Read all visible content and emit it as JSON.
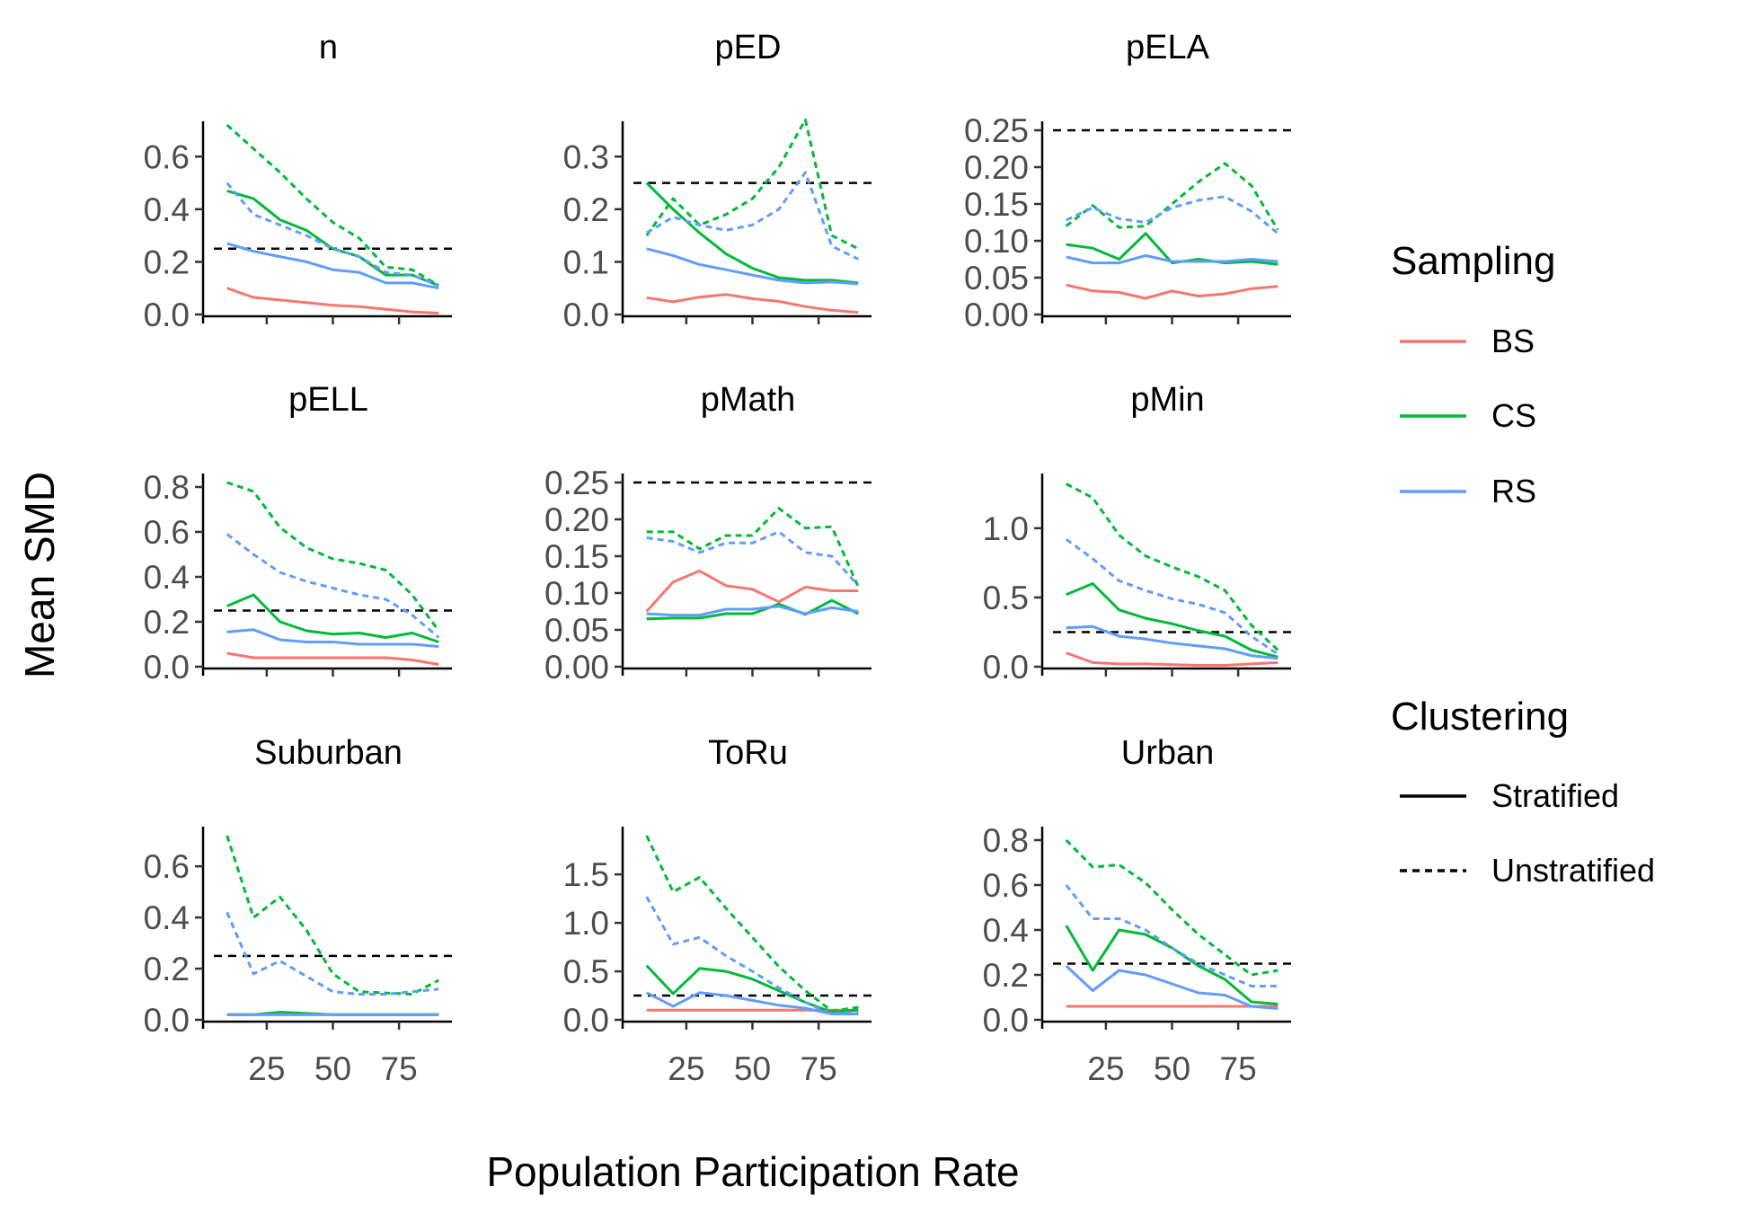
{
  "figure": {
    "xlabel": "Population Participation Rate",
    "ylabel": "Mean SMD"
  },
  "legend": {
    "sampling_title": "Sampling",
    "sampling_items": [
      {
        "label": "BS",
        "color": "#F8766D"
      },
      {
        "label": "CS",
        "color": "#00BA38"
      },
      {
        "label": "RS",
        "color": "#619CFF"
      }
    ],
    "clustering_title": "Clustering",
    "clustering_items": [
      {
        "label": "Stratified",
        "linetype": "solid"
      },
      {
        "label": "Unstratified",
        "linetype": "dashed"
      }
    ]
  },
  "chart_data": {
    "type": "line",
    "xlabel": "Population Participation Rate",
    "ylabel": "Mean SMD",
    "x": [
      10,
      20,
      30,
      40,
      50,
      60,
      70,
      80,
      90
    ],
    "x_ticks": [
      "25",
      "50",
      "75"
    ],
    "x_tick_values": [
      25,
      50,
      75
    ],
    "xlim": [
      5,
      95
    ],
    "threshold": 0.25,
    "colors": {
      "BS": "#F8766D",
      "CS": "#00BA38",
      "RS": "#619CFF"
    },
    "panels": [
      {
        "title": "n",
        "ylim": [
          0,
          0.7
        ],
        "y_ticks": [
          "0.0",
          "0.2",
          "0.4",
          "0.6"
        ],
        "y_tick_values": [
          0,
          0.2,
          0.4,
          0.6
        ],
        "series": [
          {
            "sampling": "BS",
            "clustering": "Stratified",
            "values": [
              0.1,
              0.065,
              0.055,
              0.045,
              0.035,
              0.03,
              0.02,
              0.01,
              0.005
            ]
          },
          {
            "sampling": "CS",
            "clustering": "Stratified",
            "values": [
              0.47,
              0.44,
              0.36,
              0.32,
              0.25,
              0.22,
              0.15,
              0.15,
              0.11
            ]
          },
          {
            "sampling": "RS",
            "clustering": "Stratified",
            "values": [
              0.27,
              0.24,
              0.22,
              0.2,
              0.17,
              0.16,
              0.12,
              0.12,
              0.1
            ]
          },
          {
            "sampling": "CS",
            "clustering": "Unstratified",
            "values": [
              0.72,
              0.63,
              0.54,
              0.44,
              0.35,
              0.29,
              0.18,
              0.17,
              0.11
            ]
          },
          {
            "sampling": "RS",
            "clustering": "Unstratified",
            "values": [
              0.5,
              0.38,
              0.34,
              0.3,
              0.25,
              0.22,
              0.16,
              0.15,
              0.11
            ]
          }
        ]
      },
      {
        "title": "pED",
        "ylim": [
          0,
          0.35
        ],
        "y_ticks": [
          "0.0",
          "0.1",
          "0.2",
          "0.3"
        ],
        "y_tick_values": [
          0,
          0.1,
          0.2,
          0.3
        ],
        "series": [
          {
            "sampling": "BS",
            "clustering": "Stratified",
            "values": [
              0.032,
              0.024,
              0.033,
              0.038,
              0.03,
              0.025,
              0.015,
              0.008,
              0.004
            ]
          },
          {
            "sampling": "CS",
            "clustering": "Stratified",
            "values": [
              0.25,
              0.2,
              0.155,
              0.115,
              0.088,
              0.07,
              0.065,
              0.065,
              0.06
            ]
          },
          {
            "sampling": "RS",
            "clustering": "Stratified",
            "values": [
              0.125,
              0.112,
              0.095,
              0.085,
              0.075,
              0.065,
              0.06,
              0.062,
              0.058
            ]
          },
          {
            "sampling": "CS",
            "clustering": "Unstratified",
            "values": [
              0.15,
              0.22,
              0.17,
              0.19,
              0.22,
              0.28,
              0.37,
              0.15,
              0.125
            ]
          },
          {
            "sampling": "RS",
            "clustering": "Unstratified",
            "values": [
              0.155,
              0.185,
              0.17,
              0.16,
              0.17,
              0.2,
              0.27,
              0.13,
              0.105
            ]
          }
        ]
      },
      {
        "title": "pELA",
        "ylim": [
          0,
          0.25
        ],
        "y_ticks": [
          "0.00",
          "0.05",
          "0.10",
          "0.15",
          "0.20",
          "0.25"
        ],
        "y_tick_values": [
          0,
          0.05,
          0.1,
          0.15,
          0.2,
          0.25
        ],
        "series": [
          {
            "sampling": "BS",
            "clustering": "Stratified",
            "values": [
              0.04,
              0.032,
              0.03,
              0.022,
              0.032,
              0.025,
              0.028,
              0.035,
              0.038
            ]
          },
          {
            "sampling": "CS",
            "clustering": "Stratified",
            "values": [
              0.095,
              0.09,
              0.075,
              0.11,
              0.07,
              0.075,
              0.07,
              0.072,
              0.068
            ]
          },
          {
            "sampling": "RS",
            "clustering": "Stratified",
            "values": [
              0.078,
              0.07,
              0.07,
              0.08,
              0.072,
              0.072,
              0.072,
              0.075,
              0.072
            ]
          },
          {
            "sampling": "CS",
            "clustering": "Unstratified",
            "values": [
              0.12,
              0.148,
              0.118,
              0.12,
              0.15,
              0.18,
              0.205,
              0.175,
              0.115
            ]
          },
          {
            "sampling": "RS",
            "clustering": "Unstratified",
            "values": [
              0.128,
              0.145,
              0.13,
              0.125,
              0.145,
              0.155,
              0.16,
              0.14,
              0.11
            ]
          }
        ]
      },
      {
        "title": "pELL",
        "ylim": [
          0,
          0.82
        ],
        "y_ticks": [
          "0.0",
          "0.2",
          "0.4",
          "0.6",
          "0.8"
        ],
        "y_tick_values": [
          0,
          0.2,
          0.4,
          0.6,
          0.8
        ],
        "series": [
          {
            "sampling": "BS",
            "clustering": "Stratified",
            "values": [
              0.06,
              0.04,
              0.04,
              0.04,
              0.04,
              0.04,
              0.04,
              0.03,
              0.01
            ]
          },
          {
            "sampling": "CS",
            "clustering": "Stratified",
            "values": [
              0.27,
              0.32,
              0.2,
              0.16,
              0.145,
              0.15,
              0.13,
              0.15,
              0.11
            ]
          },
          {
            "sampling": "RS",
            "clustering": "Stratified",
            "values": [
              0.155,
              0.165,
              0.12,
              0.11,
              0.11,
              0.1,
              0.1,
              0.1,
              0.09
            ]
          },
          {
            "sampling": "CS",
            "clustering": "Unstratified",
            "values": [
              0.82,
              0.78,
              0.62,
              0.53,
              0.48,
              0.46,
              0.43,
              0.32,
              0.16
            ]
          },
          {
            "sampling": "RS",
            "clustering": "Unstratified",
            "values": [
              0.59,
              0.5,
              0.42,
              0.38,
              0.35,
              0.32,
              0.3,
              0.23,
              0.13
            ]
          }
        ]
      },
      {
        "title": "pMath",
        "ylim": [
          0,
          0.25
        ],
        "y_ticks": [
          "0.00",
          "0.05",
          "0.10",
          "0.15",
          "0.20",
          "0.25"
        ],
        "y_tick_values": [
          0,
          0.05,
          0.1,
          0.15,
          0.2,
          0.25
        ],
        "series": [
          {
            "sampling": "BS",
            "clustering": "Stratified",
            "values": [
              0.075,
              0.115,
              0.13,
              0.11,
              0.105,
              0.088,
              0.108,
              0.103,
              0.103
            ]
          },
          {
            "sampling": "CS",
            "clustering": "Stratified",
            "values": [
              0.065,
              0.066,
              0.066,
              0.072,
              0.072,
              0.085,
              0.071,
              0.09,
              0.072
            ]
          },
          {
            "sampling": "RS",
            "clustering": "Stratified",
            "values": [
              0.072,
              0.07,
              0.07,
              0.078,
              0.078,
              0.082,
              0.072,
              0.08,
              0.075
            ]
          },
          {
            "sampling": "CS",
            "clustering": "Unstratified",
            "values": [
              0.183,
              0.183,
              0.16,
              0.178,
              0.178,
              0.215,
              0.188,
              0.19,
              0.108
            ]
          },
          {
            "sampling": "RS",
            "clustering": "Unstratified",
            "values": [
              0.175,
              0.17,
              0.155,
              0.168,
              0.168,
              0.183,
              0.155,
              0.15,
              0.11
            ]
          }
        ]
      },
      {
        "title": "pMin",
        "ylim": [
          0,
          1.33
        ],
        "y_ticks": [
          "0.0",
          "0.5",
          "1.0"
        ],
        "y_tick_values": [
          0,
          0.5,
          1.0
        ],
        "series": [
          {
            "sampling": "BS",
            "clustering": "Stratified",
            "values": [
              0.1,
              0.03,
              0.02,
              0.02,
              0.015,
              0.01,
              0.01,
              0.02,
              0.03
            ]
          },
          {
            "sampling": "CS",
            "clustering": "Stratified",
            "values": [
              0.52,
              0.6,
              0.41,
              0.35,
              0.31,
              0.26,
              0.22,
              0.12,
              0.07
            ]
          },
          {
            "sampling": "RS",
            "clustering": "Stratified",
            "values": [
              0.28,
              0.29,
              0.22,
              0.2,
              0.17,
              0.15,
              0.13,
              0.08,
              0.06
            ]
          },
          {
            "sampling": "CS",
            "clustering": "Unstratified",
            "values": [
              1.32,
              1.22,
              0.95,
              0.8,
              0.72,
              0.65,
              0.55,
              0.3,
              0.12
            ]
          },
          {
            "sampling": "RS",
            "clustering": "Unstratified",
            "values": [
              0.92,
              0.78,
              0.62,
              0.55,
              0.49,
              0.45,
              0.39,
              0.22,
              0.09
            ]
          }
        ]
      },
      {
        "title": "Suburban",
        "ylim": [
          0,
          0.72
        ],
        "y_ticks": [
          "0.0",
          "0.2",
          "0.4",
          "0.6"
        ],
        "y_tick_values": [
          0,
          0.2,
          0.4,
          0.6
        ],
        "series": [
          {
            "sampling": "BS",
            "clustering": "Stratified",
            "values": [
              0.02,
              0.02,
              0.02,
              0.02,
              0.02,
              0.02,
              0.02,
              0.02,
              0.02
            ]
          },
          {
            "sampling": "CS",
            "clustering": "Stratified",
            "values": [
              0.02,
              0.02,
              0.03,
              0.025,
              0.02,
              0.02,
              0.02,
              0.02,
              0.02
            ]
          },
          {
            "sampling": "RS",
            "clustering": "Stratified",
            "values": [
              0.02,
              0.02,
              0.02,
              0.02,
              0.02,
              0.02,
              0.02,
              0.02,
              0.02
            ]
          },
          {
            "sampling": "CS",
            "clustering": "Unstratified",
            "values": [
              0.72,
              0.4,
              0.48,
              0.35,
              0.18,
              0.11,
              0.105,
              0.1,
              0.155
            ]
          },
          {
            "sampling": "RS",
            "clustering": "Unstratified",
            "values": [
              0.42,
              0.18,
              0.23,
              0.17,
              0.11,
              0.1,
              0.1,
              0.11,
              0.12
            ]
          }
        ]
      },
      {
        "title": "ToRu",
        "ylim": [
          0,
          1.9
        ],
        "y_ticks": [
          "0.0",
          "0.5",
          "1.0",
          "1.5"
        ],
        "y_tick_values": [
          0,
          0.5,
          1.0,
          1.5
        ],
        "series": [
          {
            "sampling": "BS",
            "clustering": "Stratified",
            "values": [
              0.1,
              0.1,
              0.1,
              0.1,
              0.1,
              0.1,
              0.1,
              0.1,
              0.1
            ]
          },
          {
            "sampling": "CS",
            "clustering": "Stratified",
            "values": [
              0.56,
              0.27,
              0.53,
              0.5,
              0.42,
              0.3,
              0.18,
              0.08,
              0.1
            ]
          },
          {
            "sampling": "RS",
            "clustering": "Stratified",
            "values": [
              0.28,
              0.14,
              0.28,
              0.25,
              0.2,
              0.15,
              0.12,
              0.06,
              0.06
            ]
          },
          {
            "sampling": "CS",
            "clustering": "Unstratified",
            "values": [
              1.9,
              1.32,
              1.47,
              1.15,
              0.85,
              0.55,
              0.3,
              0.09,
              0.13
            ]
          },
          {
            "sampling": "RS",
            "clustering": "Unstratified",
            "values": [
              1.27,
              0.78,
              0.85,
              0.66,
              0.5,
              0.33,
              0.18,
              0.06,
              0.08
            ]
          }
        ]
      },
      {
        "title": "Urban",
        "ylim": [
          0,
          0.82
        ],
        "y_ticks": [
          "0.0",
          "0.2",
          "0.4",
          "0.6",
          "0.8"
        ],
        "y_tick_values": [
          0,
          0.2,
          0.4,
          0.6,
          0.8
        ],
        "series": [
          {
            "sampling": "BS",
            "clustering": "Stratified",
            "values": [
              0.06,
              0.06,
              0.06,
              0.06,
              0.06,
              0.06,
              0.06,
              0.06,
              0.06
            ]
          },
          {
            "sampling": "CS",
            "clustering": "Stratified",
            "values": [
              0.42,
              0.22,
              0.4,
              0.38,
              0.32,
              0.24,
              0.18,
              0.08,
              0.07
            ]
          },
          {
            "sampling": "RS",
            "clustering": "Stratified",
            "values": [
              0.24,
              0.13,
              0.22,
              0.2,
              0.16,
              0.12,
              0.11,
              0.06,
              0.05
            ]
          },
          {
            "sampling": "CS",
            "clustering": "Unstratified",
            "values": [
              0.8,
              0.68,
              0.69,
              0.61,
              0.49,
              0.38,
              0.29,
              0.2,
              0.22
            ]
          },
          {
            "sampling": "RS",
            "clustering": "Unstratified",
            "values": [
              0.6,
              0.45,
              0.45,
              0.4,
              0.32,
              0.25,
              0.2,
              0.15,
              0.15
            ]
          }
        ]
      }
    ]
  }
}
